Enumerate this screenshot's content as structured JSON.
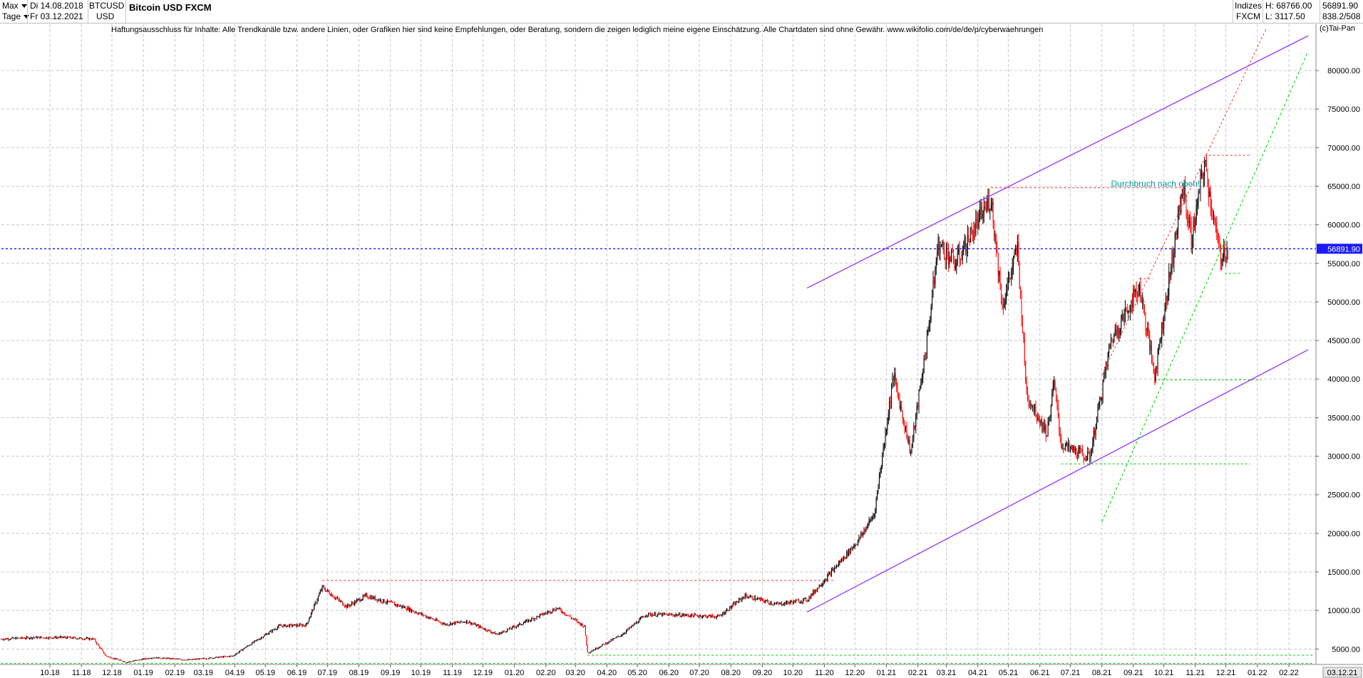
{
  "header": {
    "range_label": "Max",
    "unit_label": "Tage",
    "date_from": "Di 14.08.2018",
    "date_to": "Fr 03.12.2021",
    "symbol": "BTCUSD",
    "currency": "USD",
    "title": "Bitcoin USD FXCM",
    "market": "Indizes",
    "source": "FXCM",
    "high": "H: 68766.00",
    "low": "L: 3117.50",
    "last": "56891.90",
    "ratio": "838.2/508"
  },
  "disclaimer": "Haftungsausschluss für Inhalte: Alle Trendkanäle bzw. andere Linien, oder Grafiken hier sind keine Empfehlungen, oder Beratung, sondern die zeigen lediglich meine eigene Einschätzung. Alle Chartdaten sind ohne Gewähr.  www.wikifolio.com/de/de/p/cyberwaehrungen",
  "copyright": "(c)Tai-Pan",
  "colors": {
    "up_candle": "#000000",
    "down_candle": "#ff0000",
    "channel": "#9933ff",
    "support_green": "#00cc00",
    "resistance_red": "#ff3333",
    "last_price_line": "#0000ff",
    "grid": "#c8c8c8",
    "annotation": "#009999"
  },
  "chart_data": {
    "type": "candlestick",
    "title": "Bitcoin USD FXCM",
    "y_axis_side": "right",
    "ylim": [
      3000,
      86000
    ],
    "y_ticks": [
      "5000.00",
      "10000.00",
      "15000.00",
      "20000.00",
      "25000.00",
      "30000.00",
      "35000.00",
      "40000.00",
      "45000.00",
      "50000.00",
      "55000.00",
      "60000.00",
      "65000.00",
      "70000.00",
      "75000.00",
      "80000.00"
    ],
    "x_ticks": [
      "10.18",
      "11.18",
      "12.18",
      "01.19",
      "02.19",
      "03.19",
      "04.19",
      "05.19",
      "06.19",
      "07.19",
      "08.19",
      "09.19",
      "10.19",
      "11.19",
      "12.19",
      "01.20",
      "02.20",
      "03.20",
      "04.20",
      "05.20",
      "06.20",
      "07.20",
      "08.20",
      "09.20",
      "10.20",
      "11.20",
      "12.20",
      "01.21",
      "02.21",
      "03.21",
      "04.21",
      "05.21",
      "06.21",
      "07.21",
      "08.21",
      "09.21",
      "10.21",
      "11.21",
      "12.21",
      "01.22",
      "02.22"
    ],
    "last_date_label": "03.12.21",
    "last_price": 56891.9,
    "grid": true,
    "price_path": [
      [
        "2018-08-14",
        6300
      ],
      [
        "2018-09-15",
        6500
      ],
      [
        "2018-10-15",
        6500
      ],
      [
        "2018-11-13",
        6300
      ],
      [
        "2018-11-25",
        4100
      ],
      [
        "2018-12-15",
        3300
      ],
      [
        "2019-01-10",
        3900
      ],
      [
        "2019-02-15",
        3600
      ],
      [
        "2019-03-30",
        4100
      ],
      [
        "2019-04-10",
        5100
      ],
      [
        "2019-05-15",
        8000
      ],
      [
        "2019-06-10",
        8100
      ],
      [
        "2019-06-26",
        13000
      ],
      [
        "2019-07-20",
        10500
      ],
      [
        "2019-08-08",
        11900
      ],
      [
        "2019-09-15",
        10400
      ],
      [
        "2019-10-25",
        8200
      ],
      [
        "2019-11-15",
        8600
      ],
      [
        "2019-12-15",
        6900
      ],
      [
        "2020-01-15",
        8700
      ],
      [
        "2020-02-12",
        10300
      ],
      [
        "2020-03-10",
        7900
      ],
      [
        "2020-03-13",
        4500
      ],
      [
        "2020-04-15",
        6800
      ],
      [
        "2020-05-10",
        9500
      ],
      [
        "2020-06-15",
        9400
      ],
      [
        "2020-07-20",
        9200
      ],
      [
        "2020-08-15",
        11900
      ],
      [
        "2020-09-15",
        10800
      ],
      [
        "2020-10-15",
        11400
      ],
      [
        "2020-11-10",
        15300
      ],
      [
        "2020-12-05",
        19200
      ],
      [
        "2020-12-20",
        22500
      ],
      [
        "2021-01-08",
        40500
      ],
      [
        "2021-01-25",
        30500
      ],
      [
        "2021-02-10",
        45000
      ],
      [
        "2021-02-21",
        57500
      ],
      [
        "2021-03-10",
        55000
      ],
      [
        "2021-04-14",
        63500
      ],
      [
        "2021-04-25",
        49500
      ],
      [
        "2021-05-10",
        57000
      ],
      [
        "2021-05-19",
        38000
      ],
      [
        "2021-06-08",
        33000
      ],
      [
        "2021-06-15",
        39500
      ],
      [
        "2021-06-22",
        31500
      ],
      [
        "2021-07-20",
        29800
      ],
      [
        "2021-08-10",
        45000
      ],
      [
        "2021-09-07",
        52000
      ],
      [
        "2021-09-22",
        40500
      ],
      [
        "2021-10-20",
        65000
      ],
      [
        "2021-10-28",
        58000
      ],
      [
        "2021-11-10",
        68000
      ],
      [
        "2021-11-25",
        56000
      ],
      [
        "2021-12-03",
        56891.9
      ]
    ],
    "annotations": [
      {
        "text": "Durchbruch nach oben!",
        "date": "2021-08-10",
        "value": 65300
      }
    ],
    "trend_lines": [
      {
        "kind": "channel",
        "from": [
          "2020-10-15",
          51800
        ],
        "to": [
          "2022-02-20",
          84500
        ]
      },
      {
        "kind": "channel",
        "from": [
          "2020-10-15",
          9800
        ],
        "to": [
          "2022-02-20",
          43800
        ]
      },
      {
        "kind": "support",
        "from": [
          "2021-08-01",
          21500
        ],
        "to": [
          "2022-02-20",
          82500
        ]
      },
      {
        "kind": "resistance",
        "from": [
          "2021-08-01",
          40500
        ],
        "to": [
          "2022-01-10",
          85500
        ]
      }
    ],
    "levels": [
      {
        "kind": "resistance",
        "value": 13900,
        "from": "2019-06-26",
        "to": "2020-11-10"
      },
      {
        "kind": "resistance",
        "value": 64800,
        "from": "2021-04-14",
        "to": "2021-10-20"
      },
      {
        "kind": "resistance",
        "value": 69000,
        "from": "2021-11-10",
        "to": "2021-12-25"
      },
      {
        "kind": "resistance",
        "value": 53000,
        "from": "2021-09-07",
        "to": "2021-09-20"
      },
      {
        "kind": "support",
        "value": 29000,
        "from": "2021-06-22",
        "to": "2021-12-25"
      },
      {
        "kind": "support",
        "value": 39900,
        "from": "2021-09-25",
        "to": "2022-01-05"
      },
      {
        "kind": "support",
        "value": 53700,
        "from": "2021-11-30",
        "to": "2021-12-15"
      },
      {
        "kind": "support",
        "value": 4200,
        "from": "2020-03-13",
        "to": "2022-02-25"
      },
      {
        "kind": "support",
        "value": 3150,
        "from": "2018-08-14",
        "to": "2022-02-25"
      }
    ]
  }
}
